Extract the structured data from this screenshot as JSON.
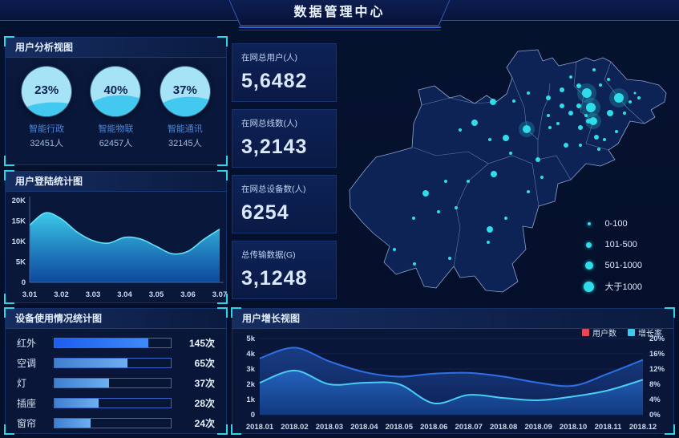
{
  "header": {
    "title": "数据管理中心"
  },
  "panels": {
    "user_analysis": {
      "title": "用户分析视图",
      "gauges": [
        {
          "percent": "23%",
          "value": 23,
          "label": "智能行政",
          "count": "32451人"
        },
        {
          "percent": "40%",
          "value": 40,
          "label": "智能物联",
          "count": "62457人"
        },
        {
          "percent": "37%",
          "value": 37,
          "label": "智能通讯",
          "count": "32145人"
        }
      ]
    },
    "login_stats": {
      "title": "用户登陆统计图"
    },
    "device_usage": {
      "title": "设备使用情况统计图",
      "rows": [
        {
          "label": "红外",
          "value": "145次"
        },
        {
          "label": "空调",
          "value": "65次"
        },
        {
          "label": "灯",
          "value": "37次"
        },
        {
          "label": "插座",
          "value": "28次"
        },
        {
          "label": "窗帘",
          "value": "24次"
        }
      ]
    },
    "user_growth": {
      "title": "用户增长视图",
      "legend": [
        {
          "label": "用户数",
          "color": "#e8475a"
        },
        {
          "label": "增长率",
          "color": "#40c9f0"
        }
      ]
    }
  },
  "stats": [
    {
      "label": "在网总用户(人)",
      "value": "5,6482"
    },
    {
      "label": "在网总线数(人)",
      "value": "3,2143"
    },
    {
      "label": "在网总设备数(人)",
      "value": "6254"
    },
    {
      "label": "总传输数据(G)",
      "value": "3,1248"
    }
  ],
  "map": {
    "legend": [
      {
        "label": "0-100"
      },
      {
        "label": "101-500"
      },
      {
        "label": "501-1000"
      },
      {
        "label": "大于1000"
      }
    ],
    "bubbles": [
      [
        308,
        72,
        6
      ],
      [
        313,
        90,
        6
      ],
      [
        348,
        78,
        6
      ],
      [
        233,
        117,
        5
      ],
      [
        316,
        107,
        5
      ],
      [
        298,
        63,
        3
      ],
      [
        277,
        88,
        3
      ],
      [
        288,
        97,
        3
      ],
      [
        298,
        88,
        3
      ],
      [
        337,
        97,
        4
      ],
      [
        260,
        78,
        3
      ],
      [
        191,
        83,
        4
      ],
      [
        168,
        109,
        4
      ],
      [
        207,
        128,
        4
      ],
      [
        192,
        173,
        4
      ],
      [
        187,
        242,
        4
      ],
      [
        107,
        197,
        4
      ],
      [
        300,
        115,
        3
      ],
      [
        310,
        107,
        3
      ],
      [
        320,
        127,
        3
      ],
      [
        282,
        137,
        3
      ],
      [
        247,
        155,
        3
      ],
      [
        277,
        68,
        3
      ],
      [
        317,
        43,
        2
      ],
      [
        325,
        62,
        2
      ],
      [
        362,
        83,
        2
      ],
      [
        373,
        78,
        2
      ],
      [
        355,
        97,
        2
      ],
      [
        300,
        137,
        2
      ],
      [
        323,
        142,
        2
      ],
      [
        262,
        115,
        2
      ],
      [
        235,
        72,
        2
      ],
      [
        217,
        82,
        2
      ],
      [
        272,
        110,
        2
      ],
      [
        288,
        52,
        2
      ],
      [
        150,
        118,
        2
      ],
      [
        187,
        130,
        2
      ],
      [
        213,
        147,
        2
      ],
      [
        235,
        195,
        2
      ],
      [
        160,
        182,
        2
      ],
      [
        145,
        215,
        2
      ],
      [
        132,
        182,
        2
      ],
      [
        92,
        228,
        2
      ],
      [
        123,
        220,
        2
      ],
      [
        137,
        278,
        2
      ],
      [
        93,
        285,
        2
      ],
      [
        68,
        267,
        2
      ],
      [
        185,
        258,
        2
      ],
      [
        207,
        228,
        2
      ],
      [
        252,
        177,
        2
      ],
      [
        368,
        72,
        1.5
      ],
      [
        260,
        100,
        2
      ],
      [
        307,
        100,
        2
      ],
      [
        335,
        55,
        2
      ],
      [
        345,
        120,
        2
      ],
      [
        330,
        130,
        2
      ]
    ]
  },
  "chart_data": [
    {
      "id": "user_analysis_gauges",
      "type": "gauge",
      "title": "用户分析视图",
      "series": [
        {
          "label": "智能行政",
          "percent": 23,
          "count": 32451
        },
        {
          "label": "智能物联",
          "percent": 40,
          "count": 62457
        },
        {
          "label": "智能通讯",
          "percent": 37,
          "count": 32145
        }
      ]
    },
    {
      "id": "login_area",
      "type": "area",
      "title": "用户登陆统计图",
      "x_ticks": [
        "3.01",
        "3.02",
        "3.03",
        "3.04",
        "3.05",
        "3.06",
        "3.07"
      ],
      "y_ticks": [
        "0",
        "5K",
        "10K",
        "15K",
        "20K"
      ],
      "ylim_k": [
        0,
        20
      ],
      "values_k": [
        14,
        17,
        15.5,
        12.3,
        10.2,
        9.6,
        11,
        10.6,
        8.8,
        7,
        7.6,
        10.5,
        13
      ]
    },
    {
      "id": "device_bars",
      "type": "bar",
      "title": "设备使用情况统计图",
      "categories": [
        "红外",
        "空调",
        "灯",
        "插座",
        "窗帘"
      ],
      "values": [
        145,
        65,
        37,
        28,
        24
      ],
      "unit": "次",
      "bar_fill_pct": [
        81,
        63,
        47,
        38,
        31
      ]
    },
    {
      "id": "growth_dual_area",
      "type": "area",
      "title": "用户增长视图",
      "categories": [
        "2018.01",
        "2018.02",
        "2018.03",
        "2018.04",
        "2018.05",
        "2018.06",
        "2018.07",
        "2018.08",
        "2018.09",
        "2018.10",
        "2018.11",
        "2018.12"
      ],
      "left_ticks": [
        "0",
        "1k",
        "2k",
        "3k",
        "4k",
        "5k"
      ],
      "right_ticks": [
        "0%",
        "4%",
        "8%",
        "12%",
        "16%",
        "20%"
      ],
      "left_lim_k": [
        0,
        5
      ],
      "right_lim_pct": [
        0,
        20
      ],
      "legend_position": "top-right",
      "grid": true,
      "series": [
        {
          "name": "用户数",
          "axis": "left",
          "values_k": [
            3.7,
            4.4,
            3.5,
            2.8,
            2.5,
            2.7,
            2.75,
            2.5,
            2.1,
            1.9,
            2.7,
            3.6
          ]
        },
        {
          "name": "增长率",
          "axis": "right",
          "values_pct": [
            8.4,
            11.6,
            8,
            8.4,
            8,
            3,
            5.2,
            4.4,
            3.8,
            4.8,
            6.4,
            9.2
          ]
        }
      ]
    },
    {
      "id": "map_bubbles",
      "type": "scatter",
      "legend": [
        "0-100",
        "101-500",
        "501-1000",
        "大于1000"
      ]
    }
  ],
  "colors": {
    "background": "#05122f",
    "accent_cyan": "#2bd6e8",
    "bubble": "#2edde9",
    "gauge_top": "#a7e3f7",
    "gauge_wave": "#43c8ef",
    "bar_bright": "#2e6cf6",
    "bar_light": "#5b9be0",
    "users_series": "#2e6fe4",
    "growth_series": "#4acdf4",
    "legend_red": "#e8475a"
  }
}
